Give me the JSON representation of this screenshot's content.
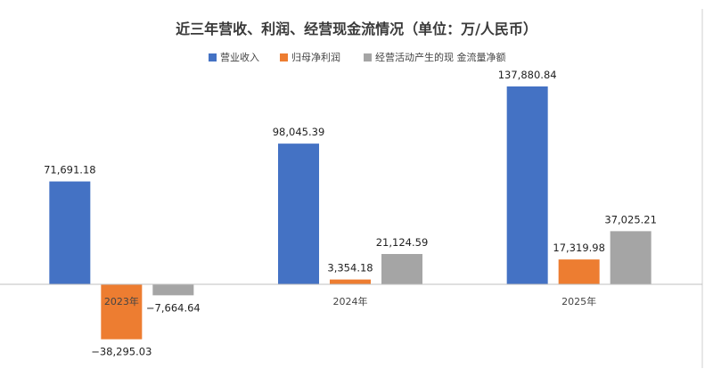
{
  "chart_data": {
    "type": "bar",
    "title": "近三年营收、利润、经营现金流情况（单位：万/人民币）",
    "categories": [
      "2023年",
      "2024年",
      "2025年"
    ],
    "series": [
      {
        "name": "营业收入",
        "color": "#4472C4",
        "values": [
          71691.18,
          98045.39,
          137880.84
        ],
        "labels": [
          "71,691.18",
          "98,045.39",
          "137,880.84"
        ]
      },
      {
        "name": "归母净利润",
        "color": "#ED7D31",
        "values": [
          -38295.03,
          3354.18,
          17319.98
        ],
        "labels": [
          "−38,295.03",
          "3,354.18",
          "17,319.98"
        ]
      },
      {
        "name": "经营活动产生的现 金流量净额",
        "color": "#A5A5A5",
        "values": [
          -7664.64,
          21124.59,
          37025.21
        ],
        "labels": [
          "−7,664.64",
          "21,124.59",
          "37,025.21"
        ]
      }
    ],
    "xlabel": "",
    "ylabel": "",
    "legend_position": "top-center",
    "grid": false
  }
}
